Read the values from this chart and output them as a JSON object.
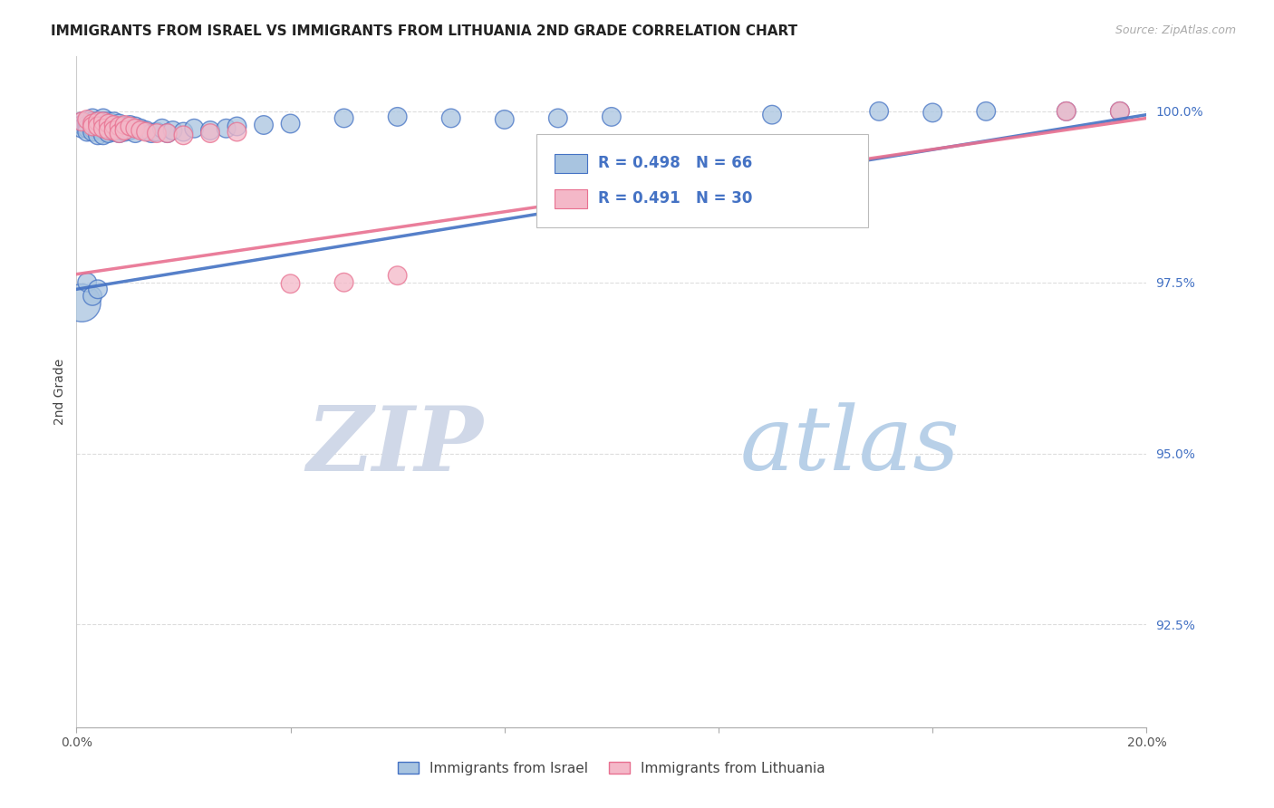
{
  "title": "IMMIGRANTS FROM ISRAEL VS IMMIGRANTS FROM LITHUANIA 2ND GRADE CORRELATION CHART",
  "source_text": "Source: ZipAtlas.com",
  "ylabel": "2nd Grade",
  "ytick_labels": [
    "92.5%",
    "95.0%",
    "97.5%",
    "100.0%"
  ],
  "ytick_values": [
    0.925,
    0.95,
    0.975,
    1.0
  ],
  "xmin": 0.0,
  "xmax": 0.2,
  "ymin": 0.91,
  "ymax": 1.008,
  "legend_israel": "Immigrants from Israel",
  "legend_lithuania": "Immigrants from Lithuania",
  "color_israel": "#a8c4e0",
  "color_israel_line": "#4472c4",
  "color_lithuania": "#f4b8c8",
  "color_lithuania_line": "#e87090",
  "R_israel": 0.498,
  "N_israel": 66,
  "R_lithuania": 0.491,
  "N_lithuania": 30,
  "grid_color": "#dddddd",
  "watermark_zip": "ZIP",
  "watermark_atlas": "atlas",
  "watermark_color_zip": "#c8d8ec",
  "watermark_color_atlas": "#b8cfe8",
  "israel_x": [
    0.001,
    0.001,
    0.001,
    0.002,
    0.002,
    0.002,
    0.002,
    0.003,
    0.003,
    0.003,
    0.003,
    0.003,
    0.004,
    0.004,
    0.004,
    0.004,
    0.005,
    0.005,
    0.005,
    0.005,
    0.005,
    0.006,
    0.006,
    0.006,
    0.007,
    0.007,
    0.007,
    0.008,
    0.008,
    0.008,
    0.009,
    0.009,
    0.01,
    0.01,
    0.011,
    0.011,
    0.012,
    0.013,
    0.014,
    0.015,
    0.016,
    0.017,
    0.018,
    0.02,
    0.022,
    0.025,
    0.028,
    0.03,
    0.035,
    0.04,
    0.001,
    0.002,
    0.003,
    0.004,
    0.05,
    0.06,
    0.07,
    0.08,
    0.09,
    0.1,
    0.13,
    0.15,
    0.16,
    0.17,
    0.185,
    0.195
  ],
  "israel_y": [
    0.9985,
    0.998,
    0.9975,
    0.9985,
    0.998,
    0.9975,
    0.997,
    0.999,
    0.9985,
    0.998,
    0.9975,
    0.997,
    0.9985,
    0.998,
    0.9975,
    0.9965,
    0.999,
    0.9985,
    0.998,
    0.9975,
    0.9965,
    0.9985,
    0.9975,
    0.9968,
    0.9985,
    0.9978,
    0.997,
    0.9982,
    0.9975,
    0.9968,
    0.9978,
    0.997,
    0.998,
    0.9972,
    0.9978,
    0.9968,
    0.9975,
    0.9972,
    0.9968,
    0.997,
    0.9975,
    0.9968,
    0.9972,
    0.997,
    0.9975,
    0.9972,
    0.9975,
    0.9978,
    0.998,
    0.9982,
    0.972,
    0.975,
    0.973,
    0.974,
    0.999,
    0.9992,
    0.999,
    0.9988,
    0.999,
    0.9992,
    0.9995,
    1.0,
    0.9998,
    1.0,
    1.0,
    1.0
  ],
  "israel_size_base": 220,
  "israel_large_idx": 50,
  "israel_large_size": 900,
  "lithuania_x": [
    0.001,
    0.002,
    0.003,
    0.003,
    0.004,
    0.004,
    0.005,
    0.005,
    0.006,
    0.006,
    0.007,
    0.007,
    0.008,
    0.008,
    0.009,
    0.009,
    0.01,
    0.011,
    0.012,
    0.013,
    0.015,
    0.017,
    0.02,
    0.025,
    0.03,
    0.04,
    0.05,
    0.06,
    0.185,
    0.195
  ],
  "lithuania_y": [
    0.9985,
    0.9988,
    0.9982,
    0.9978,
    0.9985,
    0.9978,
    0.9985,
    0.9975,
    0.9982,
    0.9972,
    0.998,
    0.9972,
    0.9978,
    0.9968,
    0.998,
    0.9972,
    0.9978,
    0.9975,
    0.9972,
    0.997,
    0.9968,
    0.9968,
    0.9965,
    0.9968,
    0.997,
    0.9748,
    0.975,
    0.976,
    1.0,
    1.0
  ],
  "lithuania_size_base": 220
}
